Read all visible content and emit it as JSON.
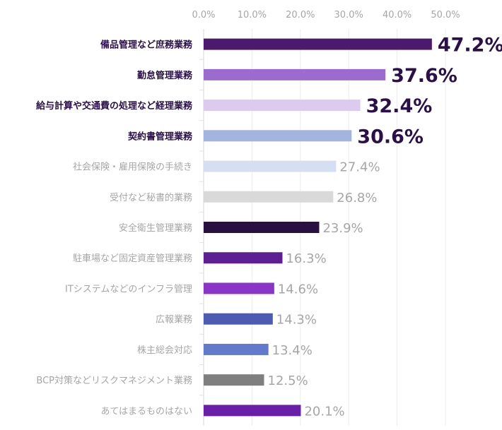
{
  "chart_data": {
    "type": "bar",
    "orientation": "horizontal",
    "title": "",
    "xlabel": "",
    "ylabel": "",
    "xlim": [
      0,
      50
    ],
    "x_tick_labels": [
      "0.0%",
      "10.0%",
      "20.0%",
      "30.0%",
      "40.0%",
      "50.0%"
    ],
    "x_ticks": [
      0,
      10,
      20,
      30,
      40,
      50
    ],
    "x_axis_position": "top",
    "grid": true,
    "legend": "none",
    "categories": [
      "備品管理など庶務業務",
      "勤怠管理業務",
      "給与計算や交通費の処理など経理業務",
      "契約書管理業務",
      "社会保険・雇用保険の手続き",
      "受付など秘書的業務",
      "安全衛生管理業務",
      "駐車場など固定資産管理業務",
      "ITシステムなどのインフラ管理",
      "広報業務",
      "株主総会対応",
      "BCP対策などリスクマネジメント業務",
      "あてはまるものはない"
    ],
    "values": [
      47.2,
      37.6,
      32.4,
      30.6,
      27.4,
      26.8,
      23.9,
      16.3,
      14.6,
      14.3,
      13.4,
      12.5,
      20.1
    ],
    "value_labels": [
      "47.2%",
      "37.6%",
      "32.4%",
      "30.6%",
      "27.4%",
      "26.8%",
      "23.9%",
      "16.3%",
      "14.6%",
      "14.3%",
      "13.4%",
      "12.5%",
      "20.1%"
    ],
    "highlighted": [
      true,
      true,
      true,
      true,
      false,
      false,
      false,
      false,
      false,
      false,
      false,
      false,
      false
    ],
    "colors": [
      "#4b1a6e",
      "#9b6bd0",
      "#dccbee",
      "#a4b4e0",
      "#d6def2",
      "#d9d9d9",
      "#2a1040",
      "#5f1f94",
      "#8a35c8",
      "#4d5cb0",
      "#6279cc",
      "#7f7f7f",
      "#6a1fa8"
    ]
  }
}
